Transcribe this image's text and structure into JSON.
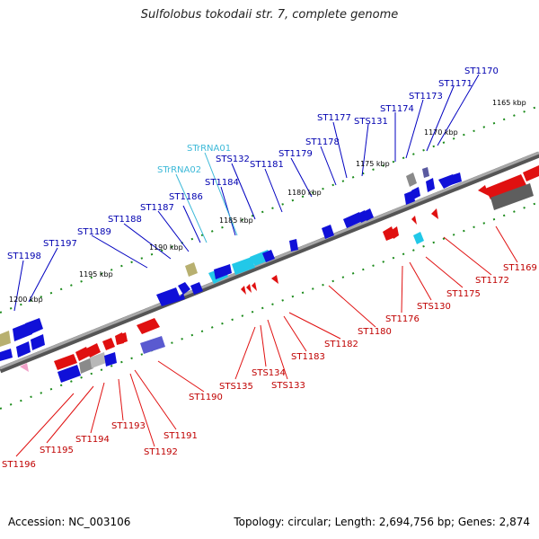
{
  "title": "Sulfolobus tokodaii str. 7, complete genome",
  "footer": {
    "accession": "Accession: NC_003106",
    "summary": "Topology: circular; Length: 2,694,756 bp; Genes: 2,874"
  },
  "colors": {
    "forward_gene": "#1010d8",
    "reverse_gene": "#e01010",
    "rna_gene": "#22c8e8",
    "other_gene": "#b8b070",
    "pseudo_gene": "#8a8a8a",
    "backbone": "#808080",
    "tick": "#1a8a1a"
  },
  "scale_labels": [
    "1165 kbp",
    "1170 kbp",
    "1175 kbp",
    "1180 kbp",
    "1185 kbp",
    "1190 kbp",
    "1195 kbp",
    "1200 kbp"
  ],
  "top_labels": [
    {
      "text": "ST1170",
      "kind": "blue"
    },
    {
      "text": "ST1171",
      "kind": "blue"
    },
    {
      "text": "ST1173",
      "kind": "blue"
    },
    {
      "text": "ST1174",
      "kind": "blue"
    },
    {
      "text": "STS131",
      "kind": "blue"
    },
    {
      "text": "ST1177",
      "kind": "blue"
    },
    {
      "text": "ST1178",
      "kind": "blue"
    },
    {
      "text": "ST1179",
      "kind": "blue"
    },
    {
      "text": "ST1181",
      "kind": "blue"
    },
    {
      "text": "STS132",
      "kind": "blue"
    },
    {
      "text": "STrRNA01",
      "kind": "cyan"
    },
    {
      "text": "STrRNA02",
      "kind": "cyan"
    },
    {
      "text": "ST1184",
      "kind": "blue"
    },
    {
      "text": "ST1186",
      "kind": "blue"
    },
    {
      "text": "ST1187",
      "kind": "blue"
    },
    {
      "text": "ST1188",
      "kind": "blue"
    },
    {
      "text": "ST1189",
      "kind": "blue"
    },
    {
      "text": "ST1197",
      "kind": "blue"
    },
    {
      "text": "ST1198",
      "kind": "blue"
    }
  ],
  "bottom_labels": [
    {
      "text": "ST1169"
    },
    {
      "text": "ST1172"
    },
    {
      "text": "ST1175"
    },
    {
      "text": "STS130"
    },
    {
      "text": "ST1176"
    },
    {
      "text": "ST1180"
    },
    {
      "text": "ST1182"
    },
    {
      "text": "ST1183"
    },
    {
      "text": "STS133"
    },
    {
      "text": "STS134"
    },
    {
      "text": "STS135"
    },
    {
      "text": "ST1190"
    },
    {
      "text": "ST1191"
    },
    {
      "text": "ST1192"
    },
    {
      "text": "ST1193"
    },
    {
      "text": "ST1194"
    },
    {
      "text": "ST1195"
    },
    {
      "text": "ST1196"
    }
  ]
}
